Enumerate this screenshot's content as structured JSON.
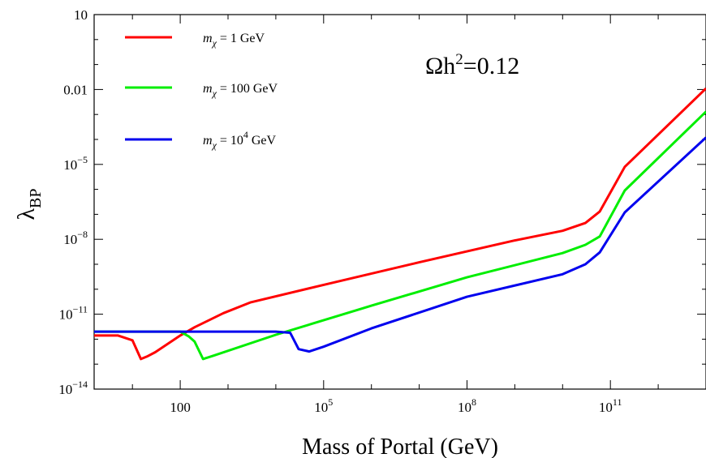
{
  "chart_data": {
    "type": "line",
    "xlabel": "Mass of Portal (GeV)",
    "ylabel": "λ",
    "ylabel_sub": "BP",
    "x_scale": "log",
    "y_scale": "log",
    "xlim": [
      1.58,
      10000000000000.0
    ],
    "ylim": [
      1e-14,
      10
    ],
    "x_ticks": [
      {
        "value": 100,
        "label": "100",
        "exp": ""
      },
      {
        "value": 100000.0,
        "label": "10",
        "exp": "5"
      },
      {
        "value": 100000000.0,
        "label": "10",
        "exp": "8"
      },
      {
        "value": 100000000000.0,
        "label": "10",
        "exp": "11"
      }
    ],
    "y_ticks": [
      {
        "value": 10,
        "label": "10",
        "exp": ""
      },
      {
        "value": 0.01,
        "label": "0.01",
        "exp": ""
      },
      {
        "value": 1e-05,
        "label": "10",
        "exp": "−5"
      },
      {
        "value": 1e-08,
        "label": "10",
        "exp": "−8"
      },
      {
        "value": 1e-11,
        "label": "10",
        "exp": "−11"
      },
      {
        "value": 1e-14,
        "label": "10",
        "exp": "−14"
      }
    ],
    "annotation": {
      "text_main": "Ωh",
      "sup": "2",
      "text_tail": "=0.12"
    },
    "legend_position": "top-left",
    "grid": false,
    "series": [
      {
        "name": "m_χ = 1 GeV",
        "legend": {
          "m": "m",
          "sub": "χ",
          "text": " = 1 GeV",
          "exp": ""
        },
        "color": "#ff0000",
        "x": [
          1.58,
          2.5,
          5,
          10,
          15,
          20,
          30,
          100,
          200,
          800,
          3000,
          100000.0,
          10000000.0,
          1000000000.0,
          10000000000.0,
          30000000000.0,
          60000000000.0,
          200000000000.0,
          10000000000000.0
        ],
        "y": [
          1.4e-12,
          1.4e-12,
          1.4e-12,
          9e-13,
          1.6e-13,
          2e-13,
          3e-13,
          1.4e-12,
          3e-12,
          1.1e-11,
          3e-11,
          1.5e-10,
          1.2e-09,
          9e-09,
          2.2e-08,
          4.5e-08,
          1.3e-07,
          8e-06,
          0.011
        ]
      },
      {
        "name": "m_χ = 100 GeV",
        "legend": {
          "m": "m",
          "sub": "χ",
          "text": " = 100 GeV",
          "exp": ""
        },
        "color": "#00ee00",
        "x": [
          1.58,
          10,
          50,
          100,
          150,
          200,
          300,
          500,
          10000.0,
          1000000.0,
          100000000.0,
          10000000000.0,
          30000000000.0,
          60000000000.0,
          200000000000.0,
          10000000000000.0
        ],
        "y": [
          2e-12,
          2e-12,
          2e-12,
          2e-12,
          1.3e-12,
          8e-13,
          1.6e-13,
          2.2e-13,
          1.5e-12,
          2.2e-11,
          3e-10,
          2.8e-09,
          6e-09,
          1.3e-08,
          9e-07,
          0.0013
        ]
      },
      {
        "name": "m_χ = 10⁴ GeV",
        "legend": {
          "m": "m",
          "sub": "χ",
          "text": " = 10",
          "exp": "4",
          "tail": " GeV"
        },
        "color": "#0000ee",
        "x": [
          1.58,
          100,
          1000,
          10000.0,
          20000.0,
          30000.0,
          50000.0,
          100000.0,
          1000000.0,
          100000000.0,
          10000000000.0,
          30000000000.0,
          60000000000.0,
          200000000000.0,
          10000000000000.0
        ],
        "y": [
          2e-12,
          2e-12,
          2e-12,
          2e-12,
          1.8e-12,
          4e-13,
          3.2e-13,
          5e-13,
          2.7e-12,
          5e-11,
          4e-10,
          1e-09,
          3e-09,
          1.2e-07,
          0.00012
        ]
      }
    ]
  }
}
